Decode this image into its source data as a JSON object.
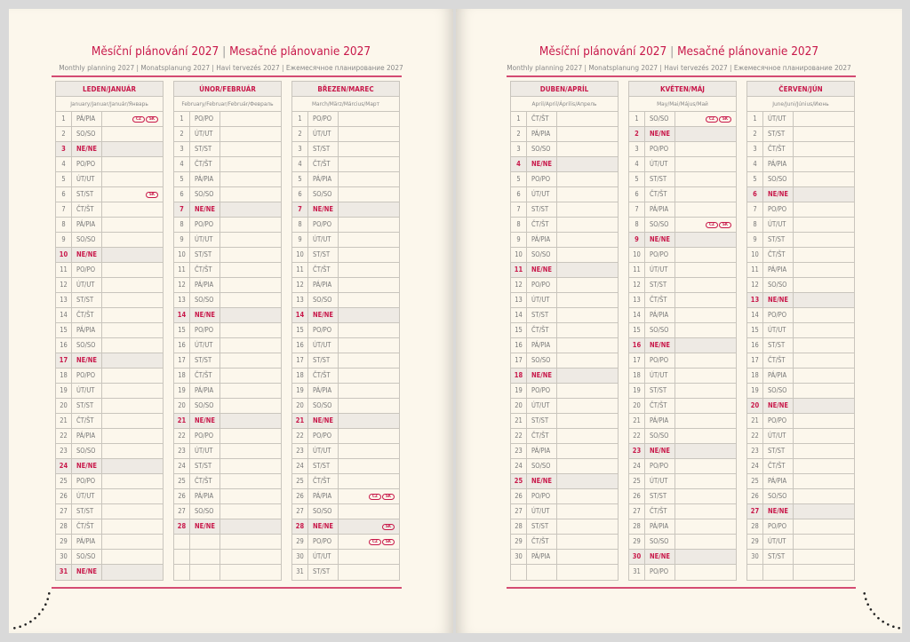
{
  "colors": {
    "accent": "#c8184a",
    "sunday_bg": "#eeeae4",
    "paper": "#fcf7ec"
  },
  "pages": [
    {
      "title_cz": "Měsíční plánování 2027",
      "title_sk": "Mesačné plánovanie 2027",
      "title_sep": "|",
      "subtitle": "Monthly planning 2027 | Monatsplanung 2027 | Havi tervezés 2027 | Ежемесячное планирование 2027",
      "months": [
        {
          "name": "LEDEN/JANUÁR",
          "sub": "January/Januar/Január/Январь",
          "start": 4,
          "len": 31,
          "holidays": {
            "1": [
              "CZ",
              "SK"
            ],
            "6": [
              "SK"
            ]
          }
        },
        {
          "name": "ÚNOR/FEBRUÁR",
          "sub": "February/Februar/Február/Февраль",
          "start": 0,
          "len": 28,
          "holidays": {}
        },
        {
          "name": "BŘEZEN/MAREC",
          "sub": "March/März/Március/Март",
          "start": 0,
          "len": 31,
          "holidays": {
            "26": [
              "CZ",
              "SK"
            ],
            "28": [
              "SK"
            ],
            "29": [
              "CZ",
              "SK"
            ]
          }
        }
      ]
    },
    {
      "title_cz": "Měsíční plánování 2027",
      "title_sk": "Mesačné plánovanie 2027",
      "title_sep": "|",
      "subtitle": "Monthly planning 2027 | Monatsplanung 2027 | Havi tervezés 2027 | Ежемесячное планирование 2027",
      "months": [
        {
          "name": "DUBEN/APRÍL",
          "sub": "April/April/Április/Апрель",
          "start": 3,
          "len": 30,
          "holidays": {}
        },
        {
          "name": "KVĚTEN/MÁJ",
          "sub": "May/Mai/Május/Май",
          "start": 5,
          "len": 31,
          "holidays": {
            "1": [
              "CZ",
              "SK"
            ],
            "8": [
              "CZ",
              "SK"
            ]
          }
        },
        {
          "name": "ČERVEN/JÚN",
          "sub": "June/Juni/Június/Июнь",
          "start": 1,
          "len": 30,
          "holidays": {}
        }
      ]
    }
  ],
  "weekdays": [
    "PO/PO",
    "ÚT/UT",
    "ST/ST",
    "ČT/ŠT",
    "PÁ/PIA",
    "SO/SO",
    "NE/NE"
  ]
}
